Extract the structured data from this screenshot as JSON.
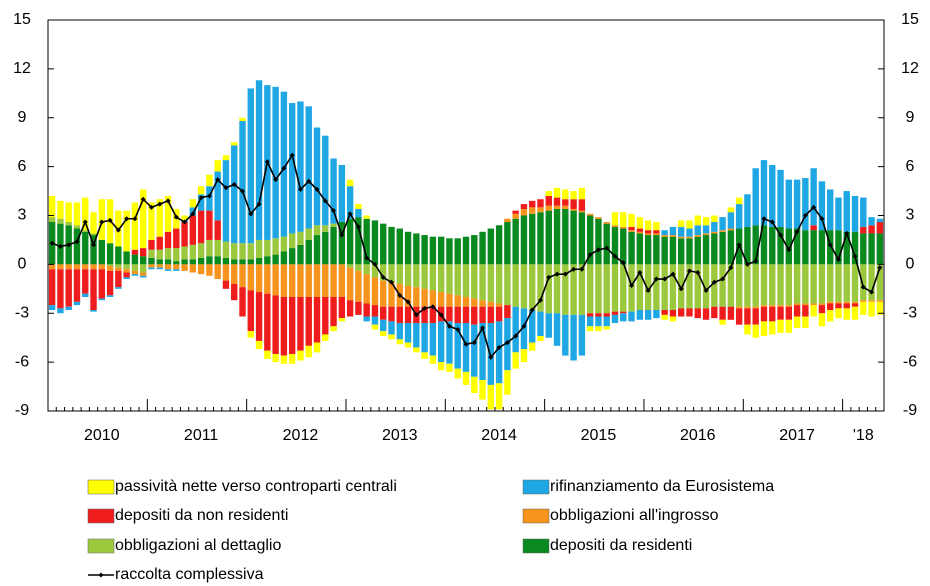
{
  "chart_data": {
    "type": "bar",
    "categories": [
      null,
      null,
      null,
      null,
      null,
      null,
      "2010",
      null,
      null,
      null,
      null,
      null,
      null,
      null,
      null,
      null,
      null,
      null,
      "2011",
      null,
      null,
      null,
      null,
      null,
      null,
      null,
      null,
      null,
      null,
      null,
      "2012",
      null,
      null,
      null,
      null,
      null,
      null,
      null,
      null,
      null,
      null,
      null,
      "2013",
      null,
      null,
      null,
      null,
      null,
      null,
      null,
      null,
      null,
      null,
      null,
      "2014",
      null,
      null,
      null,
      null,
      null,
      null,
      null,
      null,
      null,
      null,
      null,
      "2015",
      null,
      null,
      null,
      null,
      null,
      null,
      null,
      null,
      null,
      null,
      null,
      "2016",
      null,
      null,
      null,
      null,
      null,
      null,
      null,
      null,
      null,
      null,
      null,
      "2017",
      null,
      null,
      null,
      null,
      null,
      null,
      null,
      "'18",
      null,
      null
    ],
    "ylim": [
      -9,
      15
    ],
    "yticks": [
      -9,
      -6,
      -3,
      0,
      3,
      6,
      9,
      12,
      15
    ],
    "series": [
      {
        "name": "passività nette verso controparti centrali",
        "color": "#ffff00",
        "values": [
          1.3,
          1.1,
          1.2,
          1.4,
          2.0,
          1.3,
          2.5,
          2.7,
          2.2,
          2.5,
          2.9,
          3.6,
          2.3,
          2.3,
          2.2,
          1.2,
          0.3,
          0.5,
          0.5,
          0.7,
          0.7,
          0.3,
          0.2,
          0.2,
          -0.4,
          -0.5,
          -0.5,
          -0.5,
          -0.5,
          -0.6,
          -0.6,
          -0.7,
          -0.6,
          -0.4,
          -0.3,
          -0.2,
          0.4,
          0.3,
          0.2,
          -0.3,
          -0.3,
          -0.3,
          -0.3,
          -0.3,
          -0.3,
          -0.4,
          -0.5,
          -0.5,
          -0.5,
          -0.6,
          -0.8,
          -1.0,
          -1.2,
          -1.5,
          -1.6,
          -1.5,
          -1.0,
          -0.8,
          -0.5,
          -0.3,
          0.3,
          0.6,
          0.6,
          0.5,
          0.7,
          -0.3,
          -0.3,
          -0.2,
          0.8,
          0.9,
          0.8,
          0.7,
          0.6,
          0.5,
          -0.3,
          -0.3,
          0.4,
          0.5,
          0.6,
          0.5,
          0.4,
          -0.3,
          0.3,
          0.4,
          -0.6,
          -0.8,
          -0.9,
          -0.8,
          -0.8,
          -0.8,
          -0.7,
          -0.7,
          -0.7,
          -0.8,
          -0.7,
          -0.6,
          -0.7,
          -0.8,
          -0.8,
          -0.9,
          -0.8
        ]
      },
      {
        "name": "rifinanziamento da Eurosistema",
        "color": "#1ea7e4",
        "values": [
          -0.3,
          -0.3,
          -0.2,
          -0.2,
          -0.2,
          -0.1,
          -0.1,
          -0.1,
          -0.1,
          -0.1,
          -0.1,
          -0.1,
          -0.1,
          -0.1,
          -0.1,
          -0.1,
          0.1,
          0.5,
          1.0,
          1.5,
          3.0,
          5.0,
          6.0,
          7.5,
          9.5,
          9.8,
          9.5,
          9.3,
          8.9,
          8.0,
          8.0,
          7.5,
          6.0,
          5.5,
          4.0,
          3.5,
          2.0,
          0.5,
          -0.3,
          -0.5,
          -0.7,
          -0.8,
          -1.0,
          -1.2,
          -1.5,
          -1.8,
          -2.0,
          -2.5,
          -2.6,
          -2.8,
          -3.0,
          -3.2,
          -3.5,
          -3.8,
          -3.8,
          -3.2,
          -2.8,
          -2.5,
          -2.0,
          -1.5,
          -1.5,
          -2.0,
          -2.5,
          -2.8,
          -2.5,
          -0.6,
          -0.6,
          -0.6,
          -0.5,
          -0.5,
          -0.6,
          -0.6,
          -0.6,
          -0.5,
          0.3,
          0.5,
          0.6,
          0.5,
          0.6,
          0.5,
          0.6,
          0.8,
          1.0,
          1.5,
          2.0,
          3.5,
          4.0,
          3.8,
          3.5,
          3.0,
          3.0,
          3.2,
          3.5,
          3.0,
          2.5,
          2.0,
          2.5,
          2.2,
          1.8,
          0.5,
          0.2
        ]
      },
      {
        "name": "depositi da non residenti",
        "color": "#ee1c1c",
        "values": [
          -2.2,
          -2.4,
          -2.3,
          -2.0,
          -1.5,
          -2.5,
          -1.8,
          -1.5,
          -1.0,
          -0.3,
          0.3,
          0.5,
          0.6,
          0.8,
          1.0,
          1.2,
          1.5,
          1.8,
          2.0,
          1.8,
          1.2,
          -0.5,
          -1.0,
          -1.8,
          -2.5,
          -3.0,
          -3.5,
          -3.6,
          -3.6,
          -3.5,
          -3.3,
          -3.0,
          -2.8,
          -2.3,
          -1.8,
          -1.3,
          -1.0,
          -0.8,
          -0.8,
          -0.7,
          -0.8,
          -0.9,
          -1.0,
          -1.0,
          -1.0,
          -1.0,
          -1.0,
          -0.9,
          -0.9,
          -1.0,
          -1.0,
          -1.1,
          -1.0,
          -1.0,
          -0.9,
          -0.8,
          0.2,
          0.3,
          0.4,
          0.5,
          0.6,
          0.5,
          0.4,
          0.6,
          0.7,
          -0.2,
          -0.2,
          -0.2,
          -0.2,
          -0.1,
          0.2,
          0.2,
          0.2,
          0.2,
          -0.3,
          -0.4,
          -0.5,
          -0.5,
          -0.6,
          -0.7,
          -0.7,
          -0.8,
          -0.8,
          -1.0,
          -1.0,
          -1.0,
          -0.9,
          -0.9,
          -0.8,
          -0.8,
          -0.7,
          -0.7,
          0.3,
          -0.5,
          -0.4,
          -0.3,
          -0.3,
          -0.2,
          0.4,
          0.5,
          0.7
        ]
      },
      {
        "name": "obbligazioni all'ingrosso",
        "color": "#f7941d",
        "values": [
          -0.3,
          -0.3,
          -0.3,
          -0.3,
          -0.3,
          -0.3,
          -0.3,
          -0.3,
          -0.2,
          -0.2,
          -0.2,
          -0.2,
          -0.2,
          -0.2,
          -0.3,
          -0.3,
          -0.4,
          -0.5,
          -0.6,
          -0.7,
          -0.9,
          -1.0,
          -1.2,
          -1.4,
          -1.6,
          -1.7,
          -1.8,
          -1.9,
          -2.0,
          -2.0,
          -2.0,
          -2.0,
          -2.0,
          -2.0,
          -2.0,
          -2.0,
          -2.0,
          -1.9,
          -1.8,
          -1.7,
          -1.6,
          -1.5,
          -1.4,
          -1.3,
          -1.2,
          -1.1,
          -1.0,
          -0.9,
          -0.8,
          -0.7,
          -0.6,
          -0.5,
          -0.4,
          -0.3,
          -0.2,
          0.2,
          0.3,
          0.4,
          0.4,
          0.3,
          0.3,
          0.2,
          0.2,
          0.1,
          0.1,
          0.1,
          0.1,
          0.1,
          0.1,
          0.1,
          0.1,
          0.1,
          0.1,
          0.1,
          0.1,
          0.1,
          0.1,
          0.1,
          0.1,
          0.1,
          0.1,
          0.1,
          0.1,
          -0.1,
          -0.1,
          -0.1,
          -0.1,
          -0.1,
          -0.1,
          -0.1,
          -0.1,
          -0.1,
          -0.1,
          -0.1,
          -0.1,
          -0.1,
          -0.1,
          -0.1,
          -0.1,
          -0.1,
          -0.1
        ]
      },
      {
        "name": "obbligazioni al dettaglio",
        "color": "#9bc83c",
        "values": [
          0.3,
          0.3,
          0.2,
          0.2,
          0.1,
          0.1,
          0.0,
          -0.1,
          -0.2,
          -0.3,
          -0.4,
          -0.5,
          0.5,
          0.6,
          0.7,
          0.8,
          0.8,
          0.9,
          0.9,
          1.0,
          1.0,
          1.0,
          1.0,
          1.0,
          1.0,
          1.1,
          1.0,
          1.0,
          0.9,
          0.9,
          0.8,
          0.7,
          0.6,
          0.4,
          0.2,
          0.0,
          -0.2,
          -0.4,
          -0.6,
          -0.8,
          -1.0,
          -1.1,
          -1.2,
          -1.3,
          -1.4,
          -1.5,
          -1.6,
          -1.7,
          -1.8,
          -1.9,
          -2.0,
          -2.1,
          -2.2,
          -2.3,
          -2.4,
          -2.5,
          -2.6,
          -2.7,
          -2.8,
          -2.9,
          -3.0,
          -3.0,
          -3.1,
          -3.1,
          -3.1,
          -3.0,
          -3.0,
          -3.0,
          -2.9,
          -2.9,
          -2.9,
          -2.8,
          -2.8,
          -2.8,
          -2.8,
          -2.8,
          -2.7,
          -2.7,
          -2.7,
          -2.7,
          -2.6,
          -2.6,
          -2.6,
          -2.6,
          -2.6,
          -2.6,
          -2.5,
          -2.5,
          -2.5,
          -2.5,
          -2.4,
          -2.4,
          -2.4,
          -2.4,
          -2.3,
          -2.3,
          -2.3,
          -2.3,
          -2.2,
          -2.2,
          -2.2
        ]
      },
      {
        "name": "depositi da residenti",
        "color": "#0a8a1e",
        "values": [
          2.6,
          2.5,
          2.4,
          2.2,
          2.0,
          1.8,
          1.5,
          1.3,
          1.1,
          0.8,
          0.6,
          0.5,
          0.4,
          0.3,
          0.3,
          0.2,
          0.3,
          0.3,
          0.4,
          0.5,
          0.5,
          0.4,
          0.3,
          0.3,
          0.3,
          0.4,
          0.5,
          0.6,
          0.8,
          1.0,
          1.2,
          1.5,
          1.8,
          2.0,
          2.3,
          2.6,
          2.8,
          2.9,
          2.8,
          2.7,
          2.5,
          2.3,
          2.2,
          2.0,
          1.9,
          1.8,
          1.7,
          1.7,
          1.6,
          1.6,
          1.7,
          1.8,
          2.0,
          2.2,
          2.4,
          2.6,
          2.8,
          3.0,
          3.1,
          3.2,
          3.3,
          3.4,
          3.4,
          3.3,
          3.2,
          3.0,
          2.8,
          2.5,
          2.3,
          2.2,
          2.0,
          1.9,
          1.8,
          1.8,
          1.7,
          1.7,
          1.6,
          1.6,
          1.7,
          1.8,
          1.9,
          2.0,
          2.1,
          2.2,
          2.3,
          2.4,
          2.4,
          2.3,
          2.3,
          2.2,
          2.2,
          2.1,
          2.1,
          2.1,
          2.1,
          2.1,
          2.0,
          2.0,
          1.9,
          1.9,
          1.9
        ]
      }
    ],
    "line": {
      "name": "raccolta complessiva",
      "color": "#000000",
      "values": [
        1.3,
        1.1,
        1.2,
        1.4,
        2.6,
        1.2,
        2.6,
        2.7,
        2.1,
        2.8,
        2.8,
        4.0,
        3.5,
        3.7,
        3.9,
        2.9,
        2.6,
        3.1,
        4.1,
        4.2,
        5.2,
        4.7,
        4.9,
        4.5,
        3.1,
        3.7,
        6.3,
        5.2,
        5.9,
        6.7,
        4.6,
        5.1,
        4.6,
        3.9,
        3.3,
        1.8,
        3.1,
        2.3,
        0.4,
        0.0,
        -0.8,
        -1.1,
        -1.9,
        -2.3,
        -3.1,
        -2.7,
        -2.6,
        -3.1,
        -3.8,
        -4.0,
        -4.9,
        -4.8,
        -3.9,
        -5.7,
        -5.1,
        -4.8,
        -4.4,
        -3.8,
        -2.8,
        -2.2,
        -0.8,
        -0.6,
        -0.6,
        -0.3,
        -0.3,
        0.6,
        0.9,
        1.0,
        0.5,
        0.1,
        -1.3,
        -0.5,
        -1.6,
        -0.9,
        -0.9,
        -0.6,
        -1.5,
        -0.4,
        -0.5,
        -1.6,
        -1.1,
        -0.9,
        -0.2,
        1.2,
        0.0,
        0.2,
        2.8,
        2.6,
        1.8,
        0.9,
        2.0,
        3.0,
        3.5,
        2.8,
        1.2,
        0.3,
        1.9,
        0.5,
        -1.4,
        -1.7,
        -0.2
      ]
    }
  }
}
